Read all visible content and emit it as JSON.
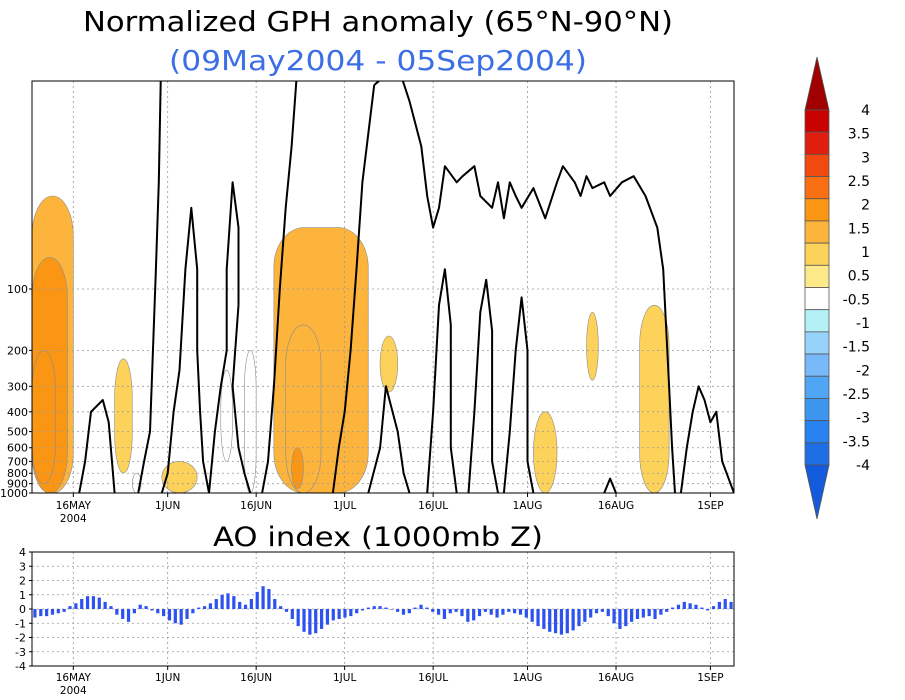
{
  "chart_data": [
    {
      "type": "heatmap",
      "title": "Normalized GPH anomaly (65°N-90°N)",
      "subtitle": "(09May2004 - 05Sep2004)",
      "subtitle_color": "#3c6ee6",
      "y_scale": "log-pressure",
      "y_ticks": [
        "100",
        "200",
        "300",
        "400",
        "500",
        "600",
        "700",
        "800",
        "900",
        "1000"
      ],
      "y_tick_values": [
        100,
        200,
        300,
        400,
        500,
        600,
        700,
        800,
        900,
        1000
      ],
      "x_ticks": [
        "16MAY",
        "1JUN",
        "16JUN",
        "1JUL",
        "16JUL",
        "1AUG",
        "16AUG",
        "1SEP"
      ],
      "x_tick_days": [
        7,
        23,
        38,
        53,
        68,
        84,
        99,
        115
      ],
      "x_year_label": "2004",
      "x_range_days": [
        0,
        119
      ],
      "grid": true,
      "zero_contour_color": "#000000",
      "colorbar": {
        "labels": [
          "4",
          "3.5",
          "3",
          "2.5",
          "2",
          "1.5",
          "1",
          "0.5",
          "-0.5",
          "-1",
          "-1.5",
          "-2",
          "-2.5",
          "-3",
          "-3.5",
          "-4"
        ],
        "colors": [
          "#a00000",
          "#c80000",
          "#e01e10",
          "#f04a10",
          "#fa6e14",
          "#fa9614",
          "#fcb43c",
          "#fcd25a",
          "#fce98a",
          "#ffffff",
          "#b4f0f8",
          "#96d2fa",
          "#78b9fa",
          "#50a5f5",
          "#3c96f0",
          "#2882f0",
          "#1e6ee6",
          "#145adc"
        ]
      },
      "anomaly_regions": [
        {
          "level": 0.5,
          "day_range": [
            0,
            6
          ],
          "p_range": [
            35,
            1000
          ],
          "peak": 1.0
        },
        {
          "level": 1.0,
          "day_range": [
            0,
            5
          ],
          "p_range": [
            70,
            1000
          ],
          "peak": 1.5
        },
        {
          "level": 1.5,
          "day_range": [
            0,
            3
          ],
          "p_range": [
            200,
            900
          ],
          "peak": 1.6
        },
        {
          "level": 0.5,
          "day_range": [
            14,
            16
          ],
          "p_range": [
            220,
            800
          ],
          "peak": 0.8
        },
        {
          "level": 0.5,
          "day_range": [
            22,
            27
          ],
          "p_range": [
            700,
            1000
          ],
          "peak": 0.7
        },
        {
          "level": -0.5,
          "day_range": [
            17,
            17.5
          ],
          "p_range": [
            800,
            1000
          ],
          "peak": -0.6
        },
        {
          "level": -0.5,
          "day_range": [
            32,
            33
          ],
          "p_range": [
            250,
            700
          ],
          "peak": -0.7
        },
        {
          "level": -0.5,
          "day_range": [
            36,
            37
          ],
          "p_range": [
            200,
            1000
          ],
          "peak": -0.8
        },
        {
          "level": 0.5,
          "day_range": [
            41,
            56
          ],
          "p_range": [
            50,
            1000
          ],
          "peak": 1.2
        },
        {
          "level": 1.0,
          "day_range": [
            43,
            48
          ],
          "p_range": [
            150,
            1000
          ],
          "peak": 1.4
        },
        {
          "level": 1.5,
          "day_range": [
            44,
            45
          ],
          "p_range": [
            600,
            950
          ],
          "peak": 1.6
        },
        {
          "level": 0.5,
          "day_range": [
            59,
            61
          ],
          "p_range": [
            170,
            320
          ],
          "peak": 0.7
        },
        {
          "level": 0.5,
          "day_range": [
            85,
            88
          ],
          "p_range": [
            400,
            1000
          ],
          "peak": 0.8
        },
        {
          "level": 0.5,
          "day_range": [
            94,
            95
          ],
          "p_range": [
            130,
            280
          ],
          "peak": 0.6
        },
        {
          "level": 0.5,
          "day_range": [
            103,
            107
          ],
          "p_range": [
            120,
            1000
          ],
          "peak": 0.9
        }
      ]
    },
    {
      "type": "bar",
      "title": "AO index (1000mb Z)",
      "bar_color": "#2e52f0",
      "y_ticks": [
        "4",
        "3",
        "2",
        "1",
        "0",
        "-1",
        "-2",
        "-3",
        "-4"
      ],
      "ylim": [
        -4,
        4
      ],
      "x_ticks": [
        "16MAY",
        "1JUN",
        "16JUN",
        "1JUL",
        "16JUL",
        "1AUG",
        "16AUG",
        "1SEP"
      ],
      "x_tick_days": [
        7,
        23,
        38,
        53,
        68,
        84,
        99,
        115
      ],
      "x_year_label": "2004",
      "grid": true,
      "values": [
        -0.6,
        -0.5,
        -0.5,
        -0.4,
        -0.3,
        -0.2,
        0.2,
        0.4,
        0.7,
        0.9,
        0.9,
        0.8,
        0.5,
        0.2,
        -0.4,
        -0.7,
        -0.9,
        -0.3,
        0.3,
        0.2,
        -0.1,
        -0.3,
        -0.5,
        -0.8,
        -1.0,
        -1.1,
        -0.7,
        -0.3,
        0.1,
        0.2,
        0.4,
        0.7,
        1.0,
        1.1,
        0.9,
        0.5,
        0.3,
        0.7,
        1.2,
        1.6,
        1.4,
        0.7,
        0.2,
        -0.2,
        -0.7,
        -1.2,
        -1.6,
        -1.8,
        -1.7,
        -1.4,
        -1.1,
        -0.8,
        -0.7,
        -0.6,
        -0.5,
        -0.3,
        -0.1,
        0.1,
        0.2,
        0.2,
        0.1,
        0.0,
        -0.2,
        -0.4,
        -0.3,
        0.1,
        0.3,
        0.1,
        -0.2,
        -0.4,
        -0.7,
        -0.3,
        -0.2,
        -0.5,
        -0.9,
        -0.8,
        -0.5,
        -0.2,
        -0.4,
        -0.6,
        -0.4,
        -0.2,
        -0.3,
        -0.4,
        -0.6,
        -0.9,
        -1.2,
        -1.4,
        -1.6,
        -1.7,
        -1.8,
        -1.7,
        -1.5,
        -1.2,
        -0.9,
        -0.6,
        -0.3,
        -0.2,
        -0.5,
        -1.0,
        -1.4,
        -1.2,
        -0.9,
        -0.7,
        -0.6,
        -0.5,
        -0.7,
        -0.4,
        -0.2,
        0.1,
        0.3,
        0.5,
        0.4,
        0.3,
        0.1,
        -0.1,
        0.2,
        0.5,
        0.7,
        0.5
      ]
    }
  ]
}
